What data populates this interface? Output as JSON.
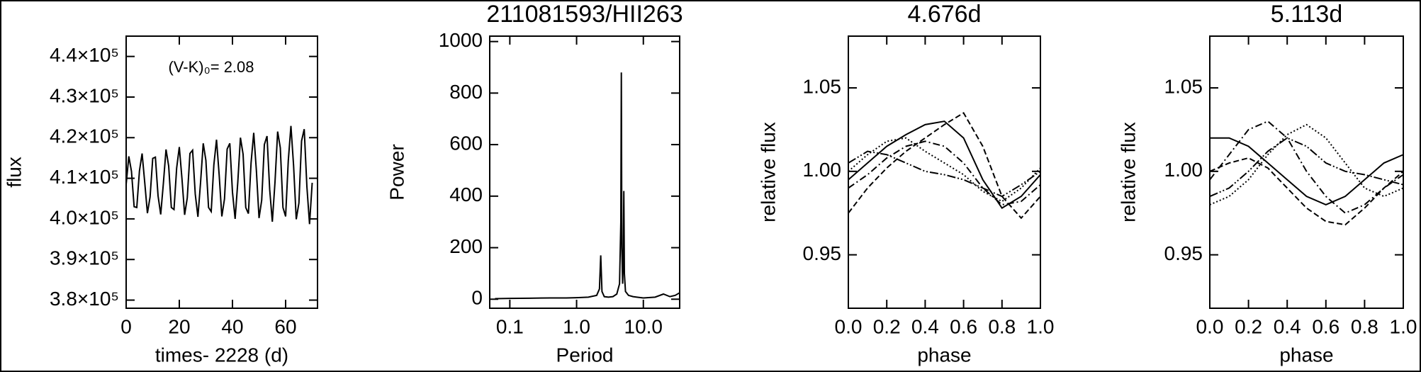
{
  "chart_data": [
    {
      "type": "line",
      "color": "#000000",
      "ylabel": "flux",
      "xlabel": "times- 2228 (d)",
      "annotation": "(V-K)₀= 2.08",
      "x": [
        0,
        1,
        2,
        3,
        4,
        5,
        6,
        7,
        8,
        9,
        10,
        11,
        12,
        13,
        14,
        15,
        16,
        17,
        18,
        19,
        20,
        21,
        22,
        23,
        24,
        25,
        26,
        27,
        28,
        29,
        30,
        31,
        32,
        33,
        34,
        35,
        36,
        37,
        38,
        39,
        40,
        41,
        42,
        43,
        44,
        45,
        46,
        47,
        48,
        49,
        50,
        51,
        52,
        53,
        54,
        55,
        56,
        57,
        58,
        59,
        60,
        61,
        62,
        63,
        64,
        65,
        66,
        67,
        68,
        69,
        70
      ],
      "values": [
        408500,
        415400,
        411700,
        403000,
        402800,
        411800,
        416100,
        408900,
        401400,
        405400,
        414900,
        415200,
        405700,
        401100,
        408700,
        417100,
        413000,
        402800,
        402300,
        412500,
        417700,
        409900,
        401000,
        405200,
        416100,
        416900,
        406100,
        400500,
        409000,
        418600,
        414400,
        402800,
        401800,
        413300,
        419500,
        410800,
        400600,
        404900,
        417200,
        418600,
        406600,
        400000,
        409000,
        420000,
        415900,
        402800,
        401300,
        413800,
        421200,
        411900,
        400200,
        404600,
        418300,
        420400,
        407300,
        399300,
        409000,
        421500,
        417500,
        402800,
        400600,
        414300,
        422900,
        413100,
        399900,
        403900,
        419200,
        422100,
        408000,
        398700,
        408900
      ],
      "xlim": [
        0,
        72
      ],
      "xticks": [
        0,
        20,
        40,
        60
      ],
      "ylim": [
        378000,
        445000
      ],
      "yticks": [
        {
          "value": 380000,
          "label": "3.8×10⁵"
        },
        {
          "value": 390000,
          "label": "3.9×10⁵"
        },
        {
          "value": 400000,
          "label": "4.0×10⁵"
        },
        {
          "value": 410000,
          "label": "4.1×10⁵"
        },
        {
          "value": 420000,
          "label": "4.2×10⁵"
        },
        {
          "value": 430000,
          "label": "4.3×10⁵"
        },
        {
          "value": 440000,
          "label": "4.4×10⁵"
        }
      ]
    },
    {
      "type": "line",
      "color": "#000000",
      "title": "211081593/HII263",
      "ylabel": "Power",
      "xlabel": "Period",
      "xscale": "log",
      "x": [
        0.06,
        0.1,
        0.2,
        0.4,
        0.7,
        1,
        1.5,
        2,
        2.2,
        2.3,
        2.4,
        2.6,
        3,
        3.5,
        4,
        4.4,
        4.6,
        4.68,
        4.76,
        4.9,
        5.0,
        5.1,
        5.2,
        5.4,
        6,
        7,
        8,
        10,
        15,
        20,
        25,
        30,
        35
      ],
      "values": [
        2,
        3,
        4,
        5,
        5,
        6,
        8,
        15,
        40,
        170,
        30,
        10,
        8,
        10,
        20,
        60,
        300,
        880,
        200,
        60,
        150,
        420,
        100,
        30,
        15,
        10,
        8,
        5,
        8,
        20,
        10,
        15,
        25
      ],
      "xlim": [
        0.05,
        35
      ],
      "xticks": [
        0.1,
        {
          "value": 1,
          "label": "1.0"
        },
        {
          "value": 10,
          "label": "10.0"
        }
      ],
      "ylim": [
        -35,
        1021
      ],
      "yticks": [
        0,
        200,
        400,
        600,
        800,
        1000
      ]
    },
    {
      "type": "line",
      "title": "4.676d",
      "ylabel": "relative flux",
      "xlabel": "phase",
      "x": [
        0,
        0.1,
        0.2,
        0.3,
        0.4,
        0.5,
        0.6,
        0.7,
        0.8,
        0.9,
        1.0
      ],
      "series": [
        {
          "color": "#000000",
          "values": [
            0.995,
            1.005,
            1.015,
            1.022,
            1.028,
            1.03,
            1.02,
            0.995,
            0.978,
            0.985,
            0.998
          ]
        },
        {
          "color": "#000000",
          "values": [
            0.99,
            0.998,
            1.008,
            1.015,
            1.018,
            1.015,
            1.005,
            0.99,
            0.98,
            0.982,
            0.992
          ]
        },
        {
          "color": "#000000",
          "values": [
            1.0,
            1.01,
            1.018,
            1.02,
            1.012,
            1.005,
            0.998,
            0.988,
            0.982,
            0.99,
            1.002
          ]
        },
        {
          "color": "#000000",
          "values": [
            0.975,
            0.99,
            1.002,
            1.012,
            1.02,
            1.028,
            1.035,
            1.015,
            0.985,
            0.972,
            0.985
          ]
        },
        {
          "color": "#000000",
          "values": [
            1.005,
            1.012,
            1.01,
            1.005,
            1.0,
            0.998,
            0.995,
            0.99,
            0.985,
            0.992,
            1.0
          ]
        }
      ],
      "xlim": [
        0,
        1
      ],
      "xticks": [
        {
          "value": 0,
          "label": "0.0"
        },
        0.2,
        0.4,
        0.6,
        0.8,
        {
          "value": 1,
          "label": "1.0"
        }
      ],
      "ylim": [
        0.918,
        1.081
      ],
      "yticks": [
        0.95,
        {
          "value": 1,
          "label": "1.00"
        },
        1.05
      ]
    },
    {
      "type": "line",
      "title": "5.113d",
      "ylabel": "relative flux",
      "xlabel": "phase",
      "x": [
        0,
        0.1,
        0.2,
        0.3,
        0.4,
        0.5,
        0.6,
        0.7,
        0.8,
        0.9,
        1.0
      ],
      "series": [
        {
          "color": "#000000",
          "values": [
            1.02,
            1.02,
            1.015,
            1.005,
            0.995,
            0.985,
            0.98,
            0.985,
            0.995,
            1.005,
            1.01
          ]
        },
        {
          "color": "#000000",
          "values": [
            0.995,
            1.01,
            1.025,
            1.03,
            1.02,
            1.0,
            0.985,
            0.975,
            0.98,
            0.99,
            0.998
          ]
        },
        {
          "color": "#000000",
          "values": [
            0.98,
            0.985,
            0.995,
            1.01,
            1.022,
            1.028,
            1.02,
            1.005,
            0.99,
            0.985,
            0.99
          ]
        },
        {
          "color": "#000000",
          "values": [
            1.0,
            1.005,
            1.008,
            1.002,
            0.99,
            0.978,
            0.97,
            0.968,
            0.978,
            0.99,
            1.0
          ]
        },
        {
          "color": "#000000",
          "values": [
            0.985,
            0.99,
            1.0,
            1.012,
            1.02,
            1.015,
            1.005,
            1.0,
            0.998,
            0.995,
            0.992
          ]
        }
      ],
      "xlim": [
        0,
        1
      ],
      "xticks": [
        {
          "value": 0,
          "label": "0.0"
        },
        0.2,
        0.4,
        0.6,
        0.8,
        {
          "value": 1,
          "label": "1.0"
        }
      ],
      "ylim": [
        0.918,
        1.081
      ],
      "yticks": [
        0.95,
        {
          "value": 1,
          "label": "1.00"
        },
        1.05
      ]
    }
  ]
}
